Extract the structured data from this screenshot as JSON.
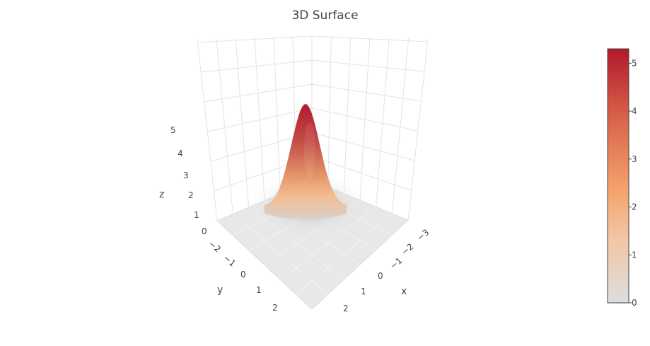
{
  "title": "3D Surface",
  "chart_data": {
    "type": "surface",
    "title": "3D Surface",
    "xlabel": "x",
    "ylabel": "y",
    "zlabel": "z",
    "x_ticks": [
      "−3",
      "−2",
      "−1",
      "0",
      "1",
      "2"
    ],
    "y_ticks": [
      "−2",
      "−1",
      "0",
      "1",
      "2"
    ],
    "z_ticks": [
      "0",
      "1",
      "2",
      "3",
      "4",
      "5"
    ],
    "xlim": [
      -3,
      3
    ],
    "ylim": [
      -3,
      3
    ],
    "zlim": [
      0,
      5.3
    ],
    "peak": {
      "x": 0,
      "y": 0,
      "z": 5.3
    },
    "colorscale": [
      "#dddddd",
      "#f3c6a6",
      "#f4a26a",
      "#d9654a",
      "#b2182b"
    ],
    "colorbar": {
      "ticks": [
        "0",
        "1",
        "2",
        "3",
        "4",
        "5"
      ],
      "range": [
        0,
        5.3
      ]
    },
    "grid": true
  }
}
